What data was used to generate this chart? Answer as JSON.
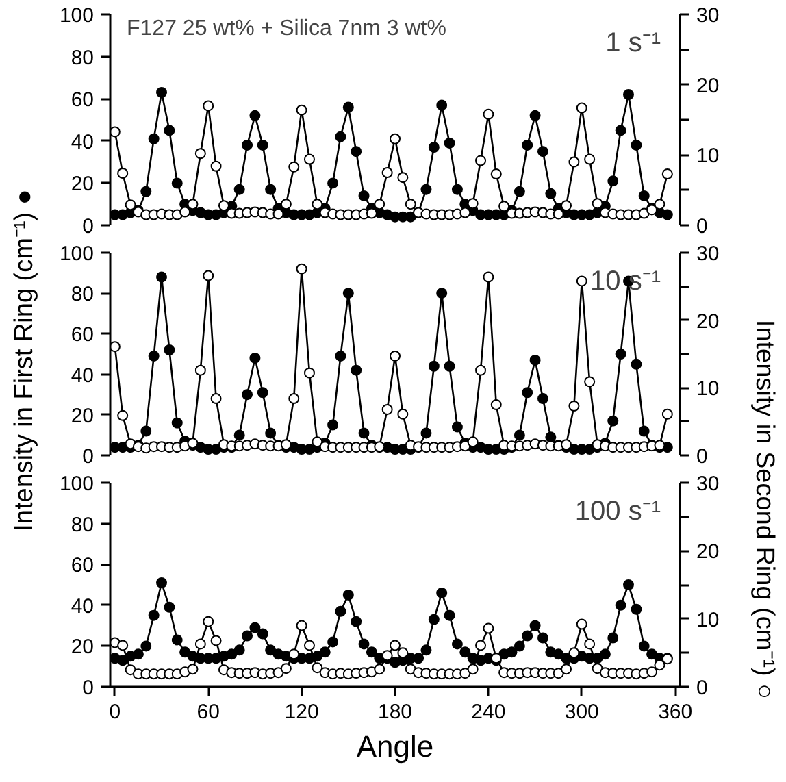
{
  "chart_data": [
    {
      "type": "line",
      "x": [
        0,
        5,
        10,
        15,
        20,
        25,
        30,
        35,
        40,
        45,
        50,
        55,
        60,
        65,
        70,
        75,
        80,
        85,
        90,
        95,
        100,
        105,
        110,
        115,
        120,
        125,
        130,
        135,
        140,
        145,
        150,
        155,
        160,
        165,
        170,
        175,
        180,
        185,
        190,
        195,
        200,
        205,
        210,
        215,
        220,
        225,
        230,
        235,
        240,
        245,
        250,
        255,
        260,
        265,
        270,
        275,
        280,
        285,
        290,
        295,
        300,
        305,
        310,
        315,
        320,
        325,
        330,
        335,
        340,
        345,
        350,
        355
      ],
      "xlim": [
        -3,
        363
      ],
      "ylim": [
        0,
        100
      ],
      "yticks": [
        0,
        20,
        40,
        60,
        80,
        100
      ],
      "y2lim": [
        0,
        30
      ],
      "y2ticks": [
        0,
        {
          "value": 5,
          "label": null
        },
        10,
        {
          "value": 15,
          "label": null
        },
        20,
        {
          "value": 25,
          "label": null
        },
        30
      ],
      "tick_labels": "y",
      "marker": "circle",
      "line_style": "solid",
      "annotations": [
        "F127 25 wt% + Silica 7nm 3 wt%",
        "1 s⁻¹"
      ],
      "series": [
        {
          "color": "#000000",
          "values": [
            5,
            5,
            6,
            7,
            16,
            41,
            63,
            45,
            20,
            10,
            7,
            6,
            5,
            5,
            6,
            9,
            17,
            38,
            52,
            38,
            17,
            8,
            6,
            5,
            5,
            5,
            6,
            8,
            20,
            42,
            56,
            35,
            14,
            8,
            6,
            5,
            4,
            4,
            4,
            6,
            17,
            37,
            57,
            39,
            17,
            10,
            7,
            5,
            5,
            5,
            5,
            7,
            16,
            38,
            52,
            35,
            15,
            8,
            6,
            5,
            5,
            5,
            6,
            9,
            21,
            45,
            62,
            38,
            14,
            8,
            6,
            5
          ]
        },
        {
          "color": "#000000",
          "axis": "y2",
          "values": [
            13.3,
            7.4,
            2.9,
            1.9,
            1.5,
            1.5,
            1.6,
            1.5,
            1.5,
            1.9,
            3.0,
            10.2,
            17.0,
            8.4,
            2.8,
            1.7,
            1.7,
            1.8,
            1.9,
            1.8,
            1.6,
            1.6,
            3.0,
            8.3,
            16.4,
            9.4,
            3.0,
            1.8,
            1.6,
            1.5,
            1.5,
            1.5,
            1.6,
            1.7,
            3.0,
            7.5,
            12.3,
            6.8,
            3.0,
            1.8,
            1.6,
            1.5,
            1.5,
            1.5,
            1.6,
            1.8,
            3.1,
            9.2,
            15.8,
            7.3,
            2.7,
            1.7,
            1.7,
            1.8,
            1.9,
            1.8,
            1.6,
            1.6,
            2.8,
            9.0,
            16.7,
            9.4,
            3.1,
            1.8,
            1.6,
            1.5,
            1.5,
            1.5,
            1.7,
            2.2,
            3.0,
            7.3
          ]
        }
      ]
    },
    {
      "type": "line",
      "x": [
        0,
        5,
        10,
        15,
        20,
        25,
        30,
        35,
        40,
        45,
        50,
        55,
        60,
        65,
        70,
        75,
        80,
        85,
        90,
        95,
        100,
        105,
        110,
        115,
        120,
        125,
        130,
        135,
        140,
        145,
        150,
        155,
        160,
        165,
        170,
        175,
        180,
        185,
        190,
        195,
        200,
        205,
        210,
        215,
        220,
        225,
        230,
        235,
        240,
        245,
        250,
        255,
        260,
        265,
        270,
        275,
        280,
        285,
        290,
        295,
        300,
        305,
        310,
        315,
        320,
        325,
        330,
        335,
        340,
        345,
        350,
        355
      ],
      "xlim": [
        -3,
        363
      ],
      "ylim": [
        0,
        100
      ],
      "yticks": [
        0,
        20,
        40,
        60,
        80,
        100
      ],
      "y2lim": [
        0,
        30
      ],
      "y2ticks": [
        0,
        {
          "value": 5,
          "label": null
        },
        10,
        {
          "value": 15,
          "label": null
        },
        20,
        {
          "value": 25,
          "label": null
        },
        30
      ],
      "tick_labels": "y",
      "marker": "circle",
      "line_style": "solid",
      "ylabel": "Intensity in First Ring (cm⁻¹) ●",
      "annotations": [
        "10 s⁻¹"
      ],
      "series": [
        {
          "color": "#000000",
          "values": [
            4,
            4,
            4,
            5,
            12,
            49,
            88,
            52,
            16,
            7,
            5,
            4,
            3,
            3,
            4,
            4,
            10,
            30,
            48,
            31,
            11,
            5,
            4,
            4,
            3,
            3,
            4,
            6,
            15,
            49,
            80,
            42,
            11,
            5,
            4,
            4,
            3,
            3,
            3,
            4,
            11,
            44,
            80,
            44,
            14,
            6,
            4,
            4,
            3,
            3,
            3,
            4,
            10,
            31,
            47,
            28,
            9,
            5,
            4,
            3,
            3,
            3,
            4,
            6,
            17,
            50,
            86,
            45,
            12,
            5,
            4,
            4
          ]
        },
        {
          "color": "#000000",
          "axis": "y2",
          "values": [
            16.1,
            5.9,
            1.7,
            1.3,
            1.1,
            1.3,
            1.3,
            1.2,
            1.2,
            1.4,
            1.8,
            12.6,
            26.6,
            8.4,
            1.6,
            1.4,
            1.4,
            1.5,
            1.7,
            1.5,
            1.4,
            1.4,
            1.6,
            8.4,
            27.6,
            12.2,
            2.0,
            1.3,
            1.2,
            1.2,
            1.2,
            1.2,
            1.2,
            1.2,
            1.3,
            6.8,
            14.7,
            6.1,
            1.5,
            1.3,
            1.2,
            1.2,
            1.2,
            1.2,
            1.3,
            1.4,
            2.0,
            12.6,
            26.4,
            7.5,
            1.5,
            1.4,
            1.4,
            1.5,
            1.7,
            1.5,
            1.4,
            1.4,
            1.6,
            7.3,
            25.8,
            10.9,
            1.6,
            1.4,
            1.2,
            1.2,
            1.2,
            1.2,
            1.3,
            1.4,
            1.5,
            6.1
          ]
        }
      ]
    },
    {
      "type": "line",
      "x": [
        0,
        5,
        10,
        15,
        20,
        25,
        30,
        35,
        40,
        45,
        50,
        55,
        60,
        65,
        70,
        75,
        80,
        85,
        90,
        95,
        100,
        105,
        110,
        115,
        120,
        125,
        130,
        135,
        140,
        145,
        150,
        155,
        160,
        165,
        170,
        175,
        180,
        185,
        190,
        195,
        200,
        205,
        210,
        215,
        220,
        225,
        230,
        235,
        240,
        245,
        250,
        255,
        260,
        265,
        270,
        275,
        280,
        285,
        290,
        295,
        300,
        305,
        310,
        315,
        320,
        325,
        330,
        335,
        340,
        345,
        350,
        355
      ],
      "xlim": [
        -3,
        363
      ],
      "xticks": [
        0,
        60,
        120,
        180,
        240,
        300,
        360
      ],
      "ylim": [
        0,
        100
      ],
      "yticks": [
        0,
        20,
        40,
        60,
        80,
        100
      ],
      "y2lim": [
        0,
        30
      ],
      "y2ticks": [
        0,
        {
          "value": 5,
          "label": null
        },
        10,
        {
          "value": 15,
          "label": null
        },
        20,
        {
          "value": 25,
          "label": null
        },
        30
      ],
      "marker": "circle",
      "line_style": "solid",
      "xlabel": "Angle",
      "y2label": "Intensity in Second Ring (cm⁻¹) ○",
      "annotations": [
        "100 s⁻¹"
      ],
      "series": [
        {
          "color": "#000000",
          "values": [
            14,
            13,
            15,
            16,
            20,
            35,
            51,
            39,
            23,
            17,
            15,
            14,
            14,
            14,
            15,
            16,
            18,
            25,
            29,
            26,
            18,
            16,
            15,
            14,
            14,
            14,
            15,
            17,
            22,
            37,
            45,
            32,
            21,
            17,
            14,
            14,
            12,
            13,
            14,
            14,
            18,
            33,
            46,
            35,
            21,
            17,
            14,
            13,
            14,
            13,
            16,
            17,
            20,
            25,
            30,
            24,
            17,
            16,
            14,
            14,
            15,
            14,
            14,
            16,
            24,
            40,
            50,
            38,
            20,
            16,
            14,
            14
          ]
        },
        {
          "color": "#000000",
          "axis": "y2",
          "values": [
            6.5,
            6.1,
            2.5,
            1.9,
            1.9,
            1.9,
            1.9,
            1.9,
            1.9,
            2.2,
            2.6,
            6.3,
            9.6,
            6.8,
            2.5,
            2.1,
            2.0,
            2.0,
            2.1,
            1.9,
            2.0,
            2.1,
            2.7,
            4.8,
            9.0,
            6.1,
            2.8,
            2.1,
            1.9,
            2.0,
            1.9,
            2.0,
            2.1,
            2.2,
            2.6,
            4.6,
            6.1,
            5.0,
            2.6,
            2.1,
            2.0,
            1.9,
            1.9,
            1.9,
            1.9,
            2.0,
            2.6,
            6.1,
            8.6,
            4.2,
            2.1,
            2.0,
            2.0,
            2.1,
            2.1,
            2.0,
            2.0,
            2.0,
            2.6,
            5.0,
            9.2,
            6.3,
            2.7,
            2.1,
            2.0,
            2.0,
            2.0,
            1.9,
            2.0,
            2.2,
            3.2,
            4.1
          ]
        }
      ]
    }
  ]
}
